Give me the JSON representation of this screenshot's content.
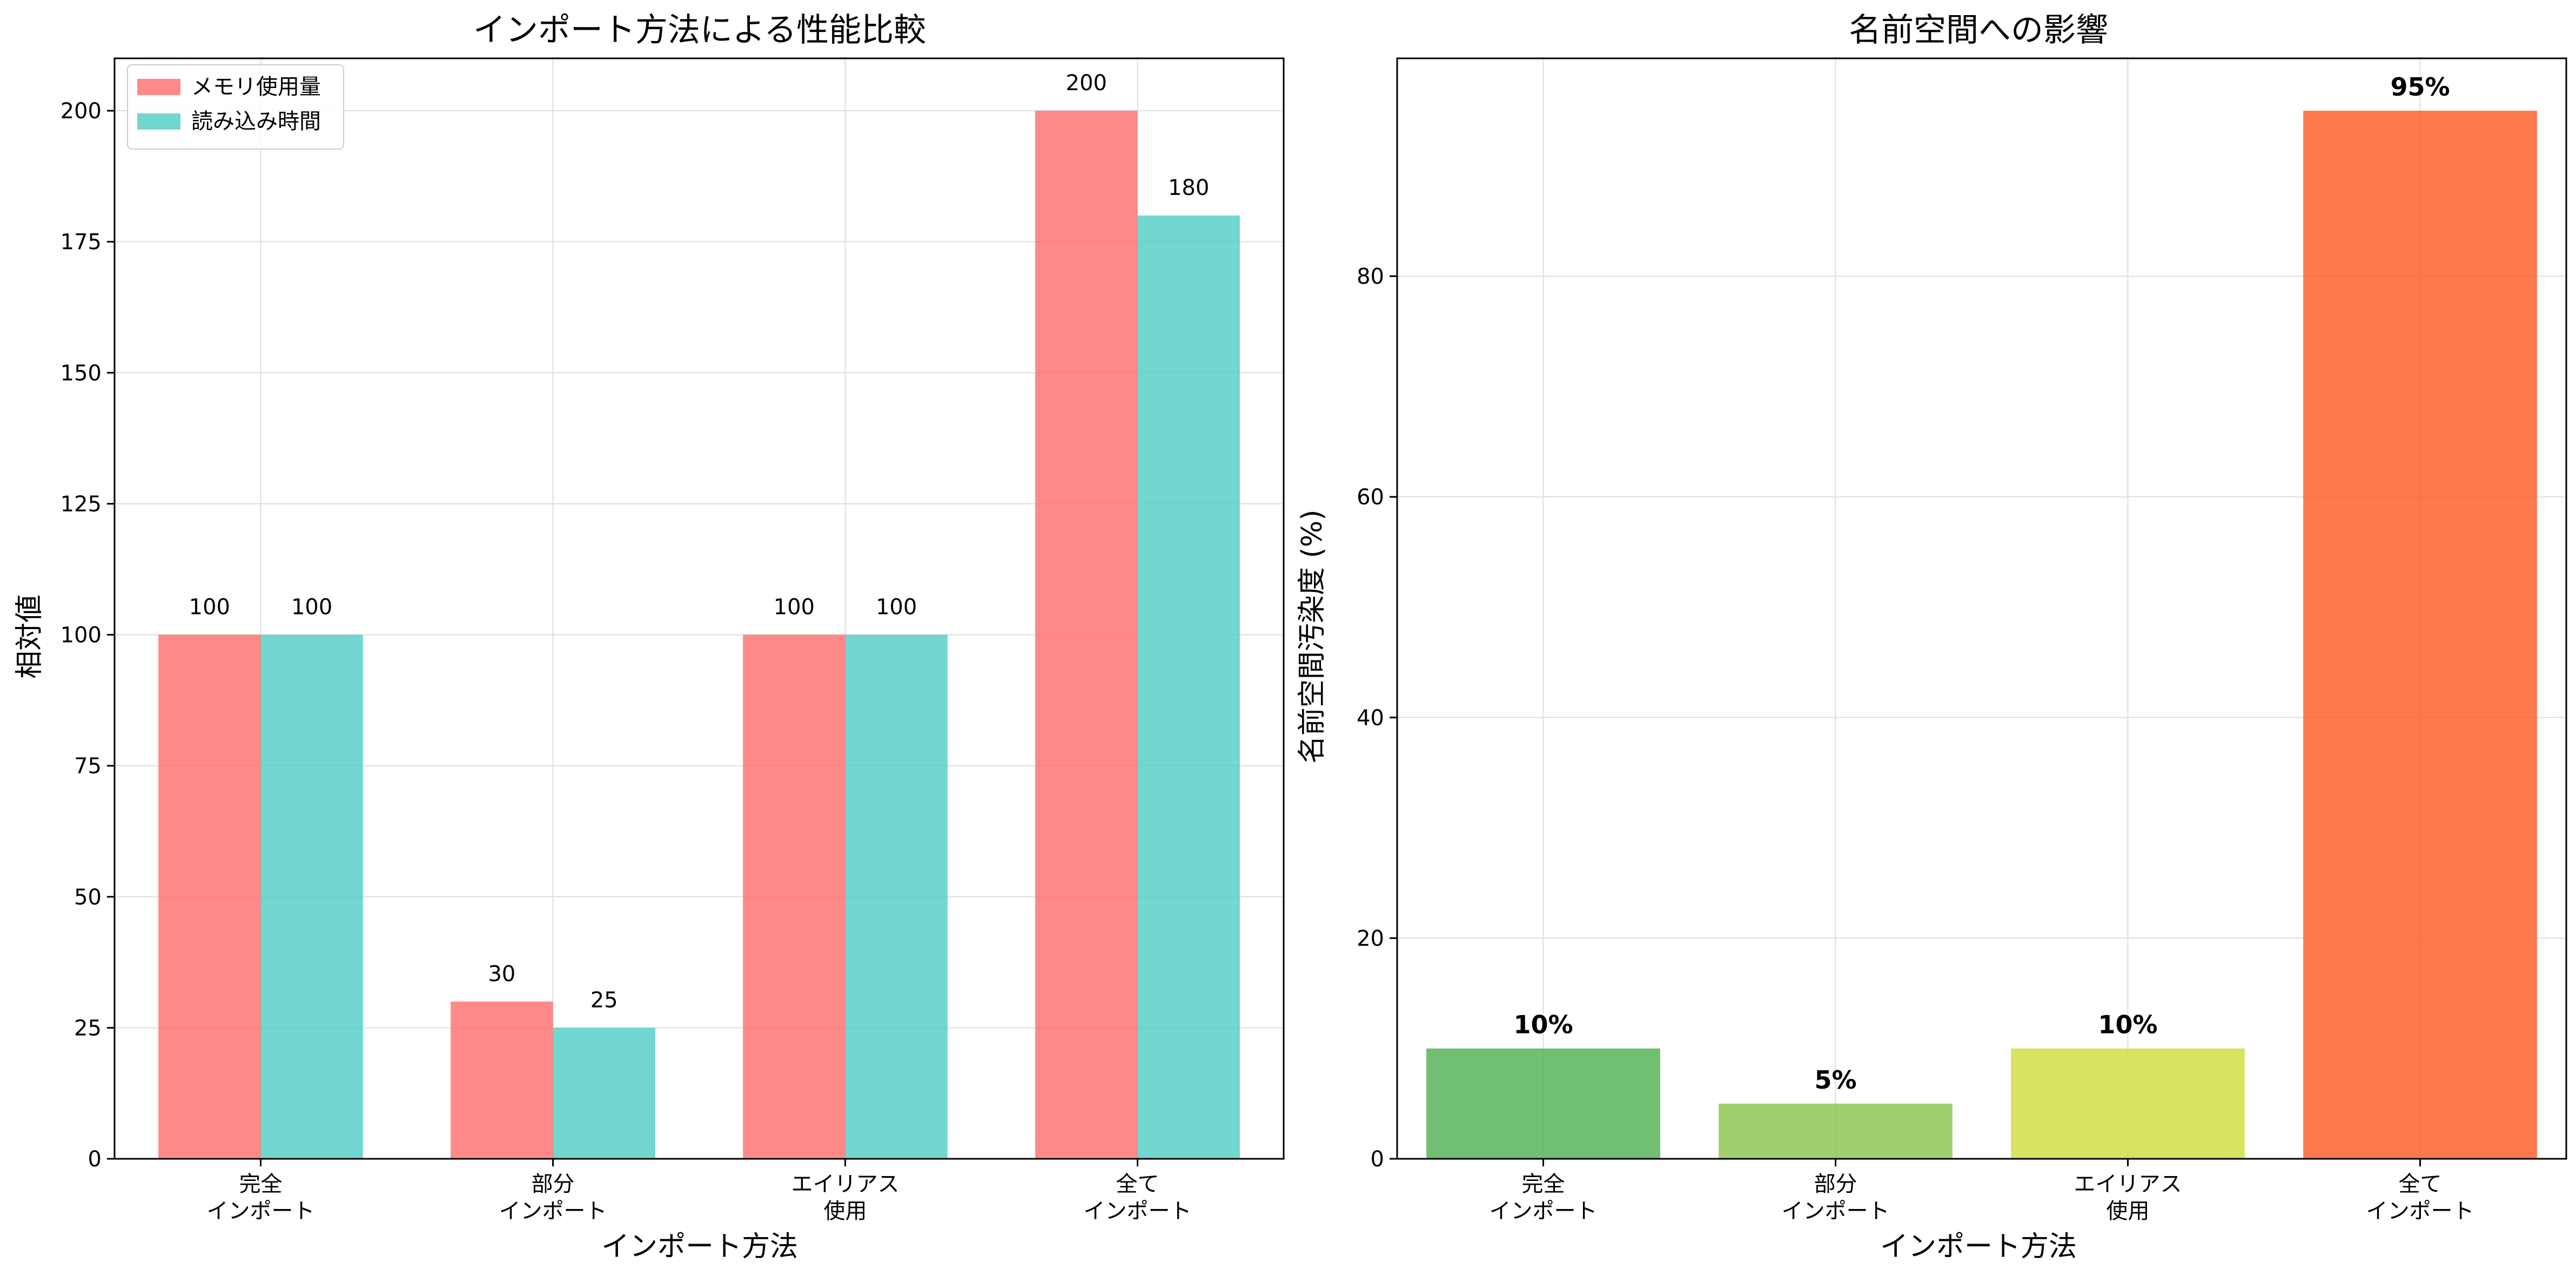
{
  "chart_data": [
    {
      "type": "bar",
      "title": "インポート方法による性能比較",
      "xlabel": "インポート方法",
      "ylabel": "相対値",
      "categories": [
        [
          "完全",
          "インポート"
        ],
        [
          "部分",
          "インポート"
        ],
        [
          "エイリアス",
          "使用"
        ],
        [
          "全て",
          "インポート"
        ]
      ],
      "ylim": [
        0,
        210
      ],
      "yticks": [
        0,
        25,
        50,
        75,
        100,
        125,
        150,
        175,
        200
      ],
      "grid": true,
      "legend_position": "top-left",
      "series": [
        {
          "name": "メモリ使用量",
          "values": [
            100,
            30,
            100,
            200
          ],
          "color": "#ff6b6b",
          "labels": [
            "100",
            "30",
            "100",
            "200"
          ]
        },
        {
          "name": "読み込み時間",
          "values": [
            100,
            25,
            100,
            180
          ],
          "color": "#4ecdc4",
          "labels": [
            "100",
            "25",
            "100",
            "180"
          ]
        }
      ]
    },
    {
      "type": "bar",
      "title": "名前空間への影響",
      "xlabel": "インポート方法",
      "ylabel": "名前空間汚染度 (%)",
      "categories": [
        [
          "完全",
          "インポート"
        ],
        [
          "部分",
          "インポート"
        ],
        [
          "エイリアス",
          "使用"
        ],
        [
          "全て",
          "インポート"
        ]
      ],
      "ylim": [
        0,
        99.75
      ],
      "yticks": [
        0,
        20,
        40,
        60,
        80
      ],
      "grid": true,
      "values": [
        10,
        5,
        10,
        95
      ],
      "labels": [
        "10%",
        "5%",
        "10%",
        "95%"
      ],
      "colors": [
        "#4caf50",
        "#8bc34a",
        "#cddc39",
        "#ff5722"
      ]
    }
  ]
}
